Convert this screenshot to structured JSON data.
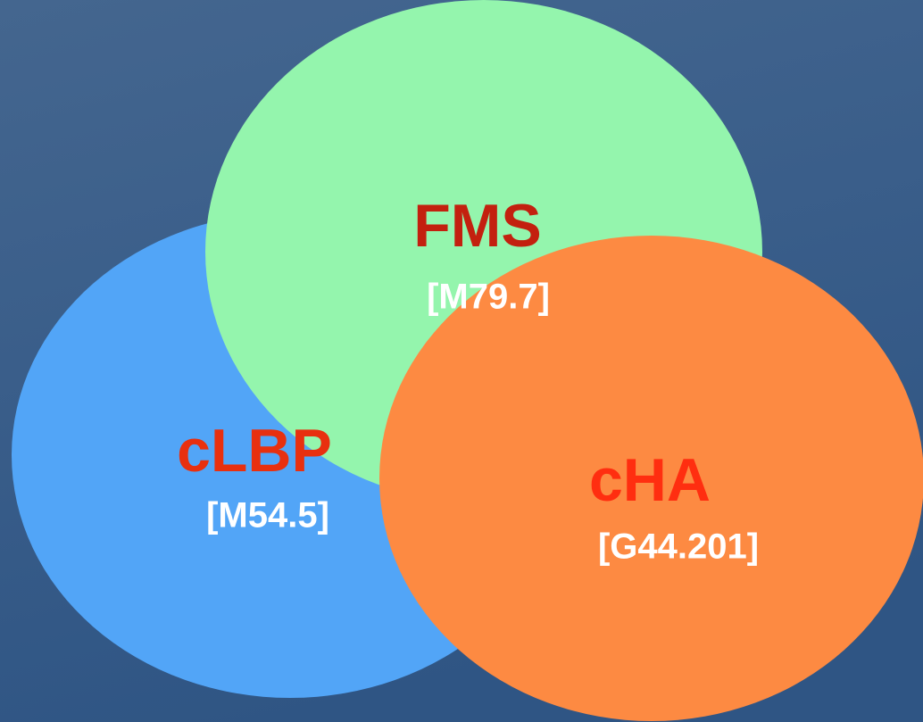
{
  "nodes": [
    {
      "label": "cLBP",
      "code": "[M54.5]"
    },
    {
      "label": "FMS",
      "code": "[M79.7]"
    },
    {
      "label": "cHA",
      "code": "[G44.201]"
    }
  ]
}
